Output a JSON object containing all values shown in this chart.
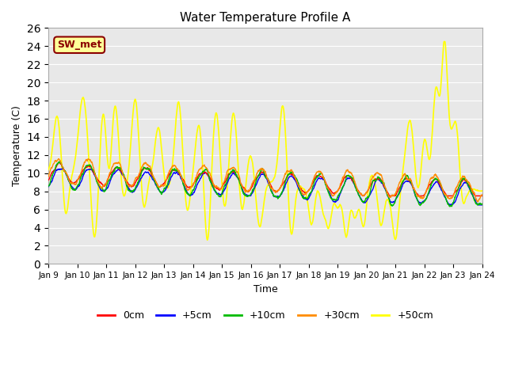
{
  "title": "Water Temperature Profile A",
  "xlabel": "Time",
  "ylabel": "Temperature (C)",
  "annotation_text": "SW_met",
  "annotation_color": "#8B0000",
  "annotation_bg": "#FFFF99",
  "ylim": [
    0,
    26
  ],
  "yticks": [
    0,
    2,
    4,
    6,
    8,
    10,
    12,
    14,
    16,
    18,
    20,
    22,
    24,
    26
  ],
  "xtick_labels": [
    "Jan 9",
    "Jan 10",
    "Jan 11",
    "Jan 12",
    "Jan 13",
    "Jan 14",
    "Jan 15",
    "Jan 16",
    "Jan 17",
    "Jan 18",
    "Jan 19",
    "Jan 20",
    "Jan 21",
    "Jan 22",
    "Jan 23",
    "Jan 24"
  ],
  "series_colors": [
    "#FF0000",
    "#0000FF",
    "#00BB00",
    "#FF8C00",
    "#FFFF00"
  ],
  "series_labels": [
    "0cm",
    "+5cm",
    "+10cm",
    "+30cm",
    "+50cm"
  ],
  "series_linewidths": [
    1.0,
    1.0,
    1.0,
    1.0,
    1.2
  ],
  "series_zorders": [
    5,
    4,
    6,
    7,
    3
  ],
  "bg_color": "#E8E8E8",
  "grid_color": "#FFFFFF",
  "figsize": [
    6.4,
    4.8
  ],
  "dpi": 100
}
